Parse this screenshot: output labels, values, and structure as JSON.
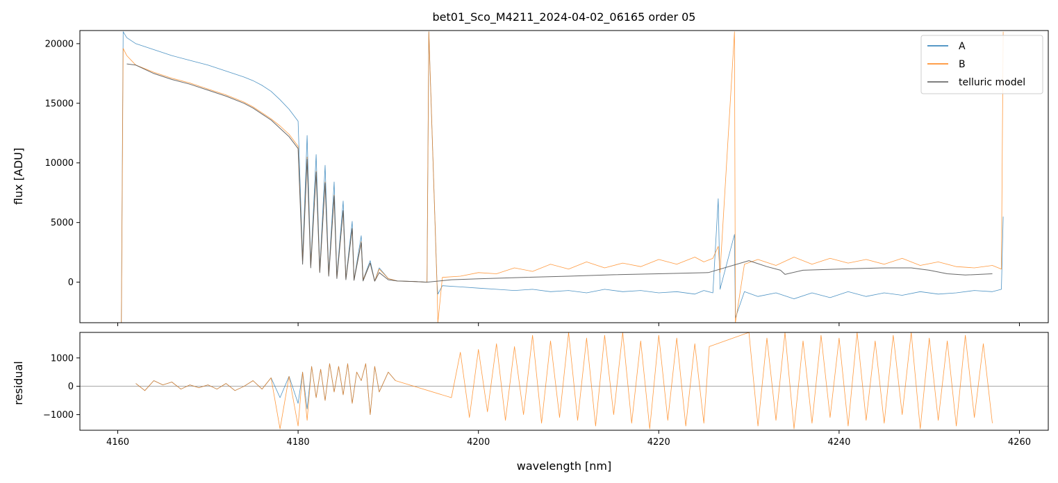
{
  "chart_data": [
    {
      "type": "line",
      "title": "bet01_Sco_M4211_2024-04-02_06165  order 05",
      "xlabel": "",
      "ylabel": "flux [ADU]",
      "xlim": [
        4155.8,
        4263.2
      ],
      "ylim": [
        -3400,
        21100
      ],
      "grid": false,
      "legend_position": "top-right",
      "x_ticks": [
        {
          "value": 4160,
          "label": ""
        },
        {
          "value": 4180,
          "label": ""
        },
        {
          "value": 4200,
          "label": ""
        },
        {
          "value": 4220,
          "label": ""
        },
        {
          "value": 4240,
          "label": ""
        },
        {
          "value": 4260,
          "label": ""
        }
      ],
      "y_ticks": [
        {
          "value": 0,
          "label": "0"
        },
        {
          "value": 5000,
          "label": "5000"
        },
        {
          "value": 10000,
          "label": "10000"
        },
        {
          "value": 15000,
          "label": "15000"
        },
        {
          "value": 20000,
          "label": "20000"
        }
      ],
      "series": [
        {
          "name": "A",
          "color": "#1f77b4",
          "x": [
            4160.4,
            4160.6,
            4161.0,
            4162,
            4164,
            4166,
            4168,
            4170,
            4172,
            4174,
            4175,
            4176,
            4177,
            4178,
            4179,
            4180,
            4180.5,
            4181,
            4181.4,
            4182,
            4182.4,
            4183,
            4183.4,
            4184,
            4184.3,
            4185,
            4185.3,
            4186,
            4186.2,
            4187,
            4187.2,
            4188,
            4188.5,
            4189,
            4190,
            4191,
            4193,
            4194.3,
            4194.5,
            4195.4,
            4195.5,
            4196,
            4198,
            4200,
            4202,
            4204,
            4206,
            4208,
            4210,
            4212,
            4214,
            4216,
            4218,
            4220,
            4222,
            4224,
            4225,
            4226,
            4226.6,
            4226.8,
            4228.4,
            4228.5,
            4229.5,
            4231,
            4233,
            4235,
            4237,
            4239,
            4241,
            4243,
            4245,
            4247,
            4249,
            4251,
            4253,
            4255,
            4257,
            4258,
            4258.2
          ],
          "y": [
            -3400,
            21000,
            20500,
            20000,
            19500,
            19000,
            18600,
            18200,
            17700,
            17200,
            16900,
            16500,
            16000,
            15300,
            14500,
            13500,
            2000,
            12300,
            1500,
            10700,
            1000,
            9800,
            700,
            8400,
            500,
            6800,
            300,
            5100,
            200,
            3900,
            200,
            1800,
            100,
            1200,
            300,
            100,
            50,
            0,
            21000,
            0,
            -1000,
            -300,
            -400,
            -500,
            -600,
            -700,
            -600,
            -800,
            -700,
            -900,
            -600,
            -800,
            -700,
            -900,
            -800,
            -1000,
            -700,
            -900,
            7000,
            -600,
            4000,
            -3000,
            -800,
            -1200,
            -900,
            -1400,
            -900,
            -1300,
            -800,
            -1200,
            -900,
            -1100,
            -800,
            -1000,
            -900,
            -700,
            -800,
            -600,
            5500
          ]
        },
        {
          "name": "B",
          "color": "#ff7f0e",
          "x": [
            4160.4,
            4160.6,
            4161.0,
            4162,
            4164,
            4166,
            4168,
            4170,
            4172,
            4174,
            4175,
            4176,
            4177,
            4178,
            4179,
            4180,
            4180.5,
            4181,
            4181.4,
            4182,
            4182.4,
            4183,
            4183.4,
            4184,
            4184.3,
            4185,
            4185.3,
            4186,
            4186.2,
            4187,
            4187.2,
            4188,
            4188.5,
            4189,
            4190,
            4191,
            4193,
            4194.3,
            4194.5,
            4195.4,
            4195.5,
            4196,
            4198,
            4200,
            4202,
            4204,
            4206,
            4208,
            4210,
            4212,
            4214,
            4216,
            4218,
            4220,
            4222,
            4224,
            4225,
            4226,
            4226.6,
            4226.8,
            4228.4,
            4228.5,
            4229.5,
            4231,
            4233,
            4235,
            4237,
            4239,
            4241,
            4243,
            4245,
            4247,
            4249,
            4251,
            4253,
            4255,
            4257,
            4258,
            4258.2
          ],
          "y": [
            -3400,
            19600,
            19000,
            18200,
            17600,
            17100,
            16700,
            16200,
            15700,
            15100,
            14700,
            14200,
            13700,
            13100,
            12400,
            11400,
            1800,
            10500,
            1400,
            9300,
            900,
            8400,
            600,
            7300,
            400,
            6000,
            300,
            4500,
            200,
            3400,
            200,
            1600,
            100,
            1100,
            300,
            100,
            50,
            0,
            21000,
            0,
            -3400,
            400,
            500,
            800,
            700,
            1200,
            900,
            1500,
            1100,
            1700,
            1200,
            1600,
            1300,
            1900,
            1500,
            2100,
            1700,
            2000,
            3000,
            800,
            21000,
            -3400,
            1500,
            1900,
            1400,
            2100,
            1500,
            2000,
            1600,
            1900,
            1500,
            2000,
            1400,
            1700,
            1300,
            1200,
            1400,
            1100,
            21000
          ]
        },
        {
          "name": "telluric model",
          "color": "#555555",
          "x": [
            4161.0,
            4162,
            4164,
            4166,
            4168,
            4170,
            4172,
            4174,
            4175,
            4176,
            4177,
            4178,
            4179,
            4180,
            4180.5,
            4181,
            4181.4,
            4182,
            4182.4,
            4183,
            4183.4,
            4184,
            4184.3,
            4185,
            4185.3,
            4186,
            4186.2,
            4187,
            4187.2,
            4188,
            4188.5,
            4189,
            4190,
            4191,
            4193,
            4194.3,
            4197,
            4200,
            4205,
            4210,
            4215,
            4220,
            4225.5,
            4230,
            4232,
            4233.5,
            4234,
            4236,
            4240,
            4245,
            4248,
            4250,
            4252,
            4254,
            4257
          ],
          "y": [
            18300,
            18200,
            17500,
            17000,
            16600,
            16100,
            15600,
            15000,
            14600,
            14100,
            13600,
            12900,
            12200,
            11200,
            1500,
            10300,
            1200,
            9200,
            800,
            8300,
            500,
            7200,
            300,
            6000,
            200,
            4500,
            150,
            3300,
            100,
            1600,
            80,
            800,
            200,
            100,
            50,
            0,
            200,
            280,
            400,
            500,
            620,
            700,
            800,
            1800,
            1300,
            1000,
            650,
            1000,
            1100,
            1200,
            1200,
            1000,
            700,
            600,
            700
          ]
        }
      ]
    },
    {
      "type": "line",
      "title": "",
      "xlabel": "wavelength [nm]",
      "ylabel": "residual",
      "xlim": [
        4155.8,
        4263.2
      ],
      "ylim": [
        -1550,
        1900
      ],
      "grid": false,
      "x_ticks": [
        {
          "value": 4160,
          "label": "4160"
        },
        {
          "value": 4180,
          "label": "4180"
        },
        {
          "value": 4200,
          "label": "4200"
        },
        {
          "value": 4220,
          "label": "4220"
        },
        {
          "value": 4240,
          "label": "4240"
        },
        {
          "value": 4260,
          "label": "4260"
        }
      ],
      "y_ticks": [
        {
          "value": -1000,
          "label": "−1000"
        },
        {
          "value": 0,
          "label": "0"
        },
        {
          "value": 1000,
          "label": "1000"
        }
      ],
      "reference_line": {
        "value": 0,
        "color": "#888888"
      },
      "series": [
        {
          "name": "A",
          "color": "#1f77b4",
          "x": [
            4162,
            4163,
            4164,
            4165,
            4166,
            4167,
            4168,
            4169,
            4170,
            4171,
            4172,
            4173,
            4174,
            4175,
            4176,
            4177,
            4178,
            4179,
            4180,
            4180.5,
            4181,
            4181.5,
            4182,
            4182.5,
            4183,
            4183.5,
            4184,
            4184.5,
            4185,
            4185.5,
            4186,
            4186.5,
            4187,
            4187.5,
            4188,
            4188.5,
            4189,
            4190,
            4190.8
          ],
          "y": [
            100,
            -150,
            200,
            50,
            150,
            -100,
            50,
            -50,
            50,
            -100,
            100,
            -150,
            0,
            200,
            -100,
            300,
            -400,
            350,
            -600,
            500,
            -800,
            700,
            -400,
            600,
            -500,
            800,
            -200,
            700,
            -300,
            800,
            -600,
            500,
            200,
            800,
            -1000,
            700,
            -200,
            500,
            200
          ]
        },
        {
          "name": "B",
          "color": "#ff7f0e",
          "x": [
            4162,
            4163,
            4164,
            4165,
            4166,
            4167,
            4168,
            4169,
            4170,
            4171,
            4172,
            4173,
            4174,
            4175,
            4176,
            4177,
            4178,
            4179,
            4180,
            4180.5,
            4181,
            4181.5,
            4182,
            4182.5,
            4183,
            4183.5,
            4184,
            4184.5,
            4185,
            4185.5,
            4186,
            4186.5,
            4187,
            4187.5,
            4188,
            4188.5,
            4189,
            4190,
            4190.8,
            4197,
            4198,
            4199,
            4200,
            4201,
            4202,
            4203,
            4204,
            4205,
            4206,
            4207,
            4208,
            4209,
            4210,
            4211,
            4212,
            4213,
            4214,
            4215,
            4216,
            4217,
            4218,
            4219,
            4220,
            4221,
            4222,
            4223,
            4224,
            4225,
            4225.6,
            4230,
            4231,
            4232,
            4233,
            4234,
            4235,
            4236,
            4237,
            4238,
            4239,
            4240,
            4241,
            4242,
            4243,
            4244,
            4245,
            4246,
            4247,
            4248,
            4249,
            4250,
            4251,
            4252,
            4253,
            4254,
            4255,
            4256,
            4257
          ],
          "y": [
            100,
            -150,
            200,
            50,
            150,
            -100,
            50,
            -50,
            50,
            -100,
            100,
            -150,
            0,
            200,
            -100,
            300,
            -1500,
            350,
            -1400,
            500,
            -1200,
            700,
            -400,
            600,
            -500,
            800,
            -200,
            700,
            -300,
            800,
            -600,
            500,
            200,
            800,
            -1000,
            700,
            -200,
            500,
            200,
            -400,
            1200,
            -1100,
            1300,
            -900,
            1500,
            -1200,
            1400,
            -1000,
            1800,
            -1300,
            1600,
            -1100,
            1900,
            -1200,
            1700,
            -1400,
            1800,
            -1000,
            1900,
            -1300,
            1600,
            -1500,
            1800,
            -1200,
            1700,
            -1400,
            1500,
            -1300,
            1400,
            1900,
            -1400,
            1700,
            -1200,
            1900,
            -1500,
            1600,
            -1300,
            1800,
            -1100,
            1700,
            -1400,
            1900,
            -1200,
            1600,
            -1300,
            1800,
            -1000,
            1900,
            -1500,
            1700,
            -1200,
            1600,
            -1400,
            1800,
            -1100,
            1500,
            -1300
          ]
        }
      ]
    }
  ]
}
